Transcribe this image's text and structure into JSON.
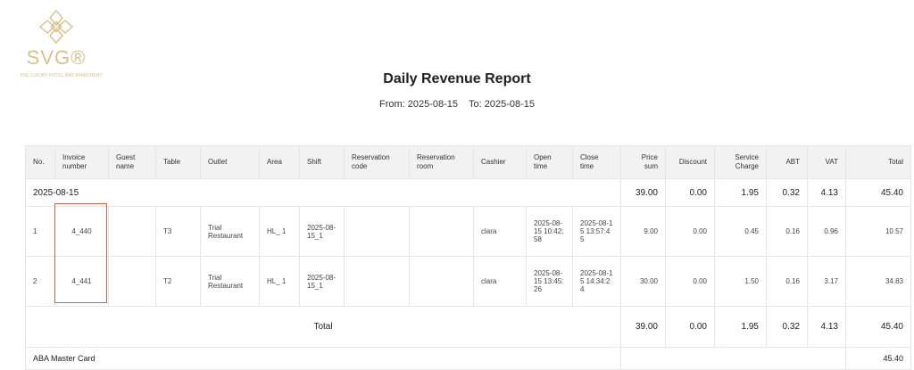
{
  "logo": {
    "brand": "SVG®",
    "tagline": "THE LUXURY HOTEL AND APARTMENT",
    "color": "#d9bf8c"
  },
  "title": "Daily Revenue Report",
  "range": {
    "from": "From: 2025-08-15",
    "to": "To: 2025-08-15"
  },
  "columns": [
    "No.",
    "Invoice number",
    "Guest name",
    "Table",
    "Outlet",
    "Area",
    "Shift",
    "Reservation code",
    "Reservation room",
    "Cashier",
    "Open time",
    "Close time",
    "Price sum",
    "Discount",
    "Service Charge",
    "ABT",
    "VAT",
    "Total"
  ],
  "date_group": {
    "date": "2025-08-15",
    "price_sum": "39.00",
    "discount": "0.00",
    "service": "1.95",
    "abt": "0.32",
    "vat": "4.13",
    "total": "45.40"
  },
  "rows": [
    {
      "no": "1",
      "invoice": "4_440",
      "guest": "",
      "table": "T3",
      "outlet": "Trial Restaurant",
      "area": "HL_ 1",
      "shift": "2025-08-15_1",
      "res_code": "",
      "res_room": "",
      "cashier": "clara",
      "open": "2025-08-15 10:42:58",
      "close": "2025-08-15 13:57:45",
      "price_sum": "9.00",
      "discount": "0.00",
      "service": "0.45",
      "abt": "0.16",
      "vat": "0.96",
      "total": "10.57"
    },
    {
      "no": "2",
      "invoice": "4_441",
      "guest": "",
      "table": "T2",
      "outlet": "Trial Restaurant",
      "area": "HL_ 1",
      "shift": "2025-08-15_1",
      "res_code": "",
      "res_room": "",
      "cashier": "clara",
      "open": "2025-08-15 13:45:26",
      "close": "2025-08-15 14:34:24",
      "price_sum": "30.00",
      "discount": "0.00",
      "service": "1.50",
      "abt": "0.16",
      "vat": "3.17",
      "total": "34.83"
    }
  ],
  "total": {
    "label": "Total",
    "price_sum": "39.00",
    "discount": "0.00",
    "service": "1.95",
    "abt": "0.32",
    "vat": "4.13",
    "total": "45.40"
  },
  "payment": {
    "label": "ABA Master Card",
    "total": "45.40"
  },
  "highlight_color": "#e2584a",
  "link_color": "#3344dd"
}
